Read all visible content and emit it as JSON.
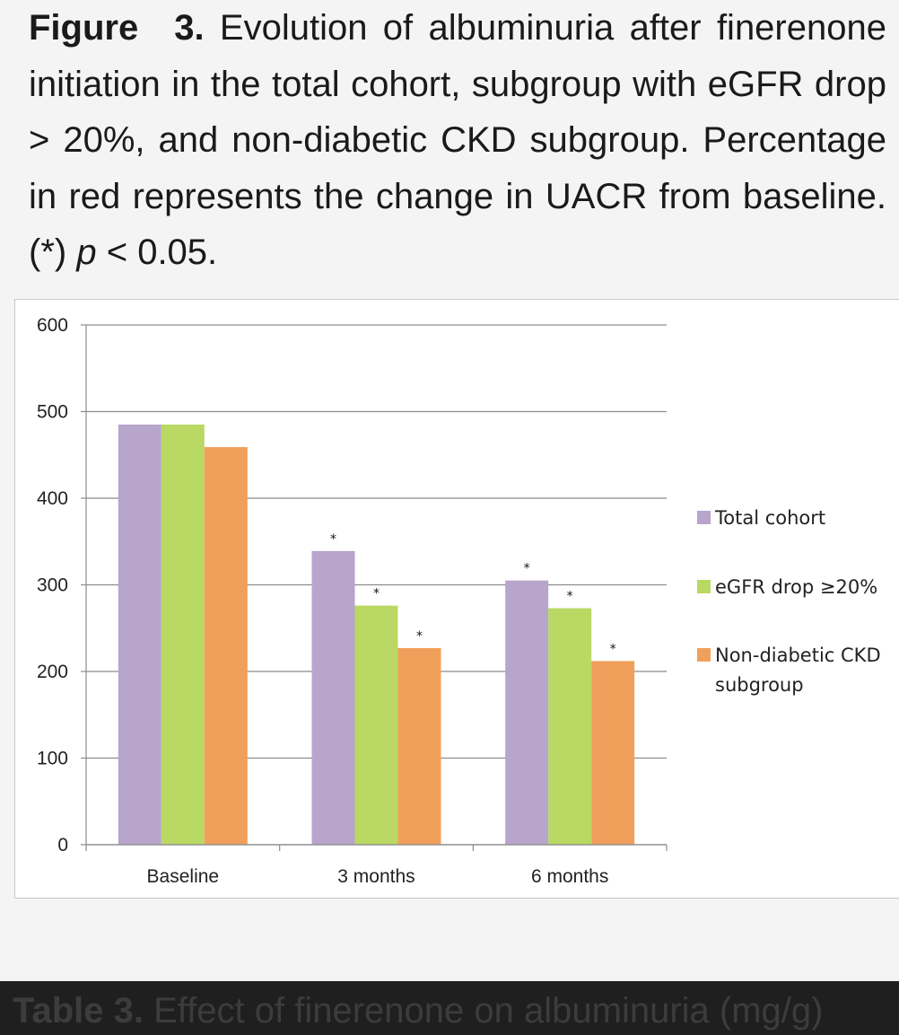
{
  "caption": {
    "label": "Figure",
    "number": "3.",
    "text_before_p": "Evolution of albuminuria after finerenone initiation in the total cohort, subgroup with eGFR drop > 20%, and non-diabetic CKD subgroup. Percentage in red represents the change in UACR from baseline. (*)",
    "p_italic": "p",
    "text_after_p": "< 0.05."
  },
  "table_caption": {
    "label": "Table 3.",
    "text": "Effect of finerenone on albuminuria (mg/g)"
  },
  "colors": {
    "total_cohort": "#b7a5cc",
    "egfr_drop": "#b9d864",
    "non_diabetic": "#f0a05a",
    "gridline": "#8c8c8c"
  },
  "chart_data": {
    "type": "bar",
    "title": "",
    "xlabel": "",
    "ylabel": "",
    "ylim": [
      0,
      600
    ],
    "yticks": [
      "0",
      "100",
      "200",
      "300",
      "400",
      "500",
      "600"
    ],
    "grid": true,
    "legend_position": "right",
    "categories": [
      "Baseline",
      "3 months",
      "6 months"
    ],
    "series": [
      {
        "name": "Total cohort",
        "color_key": "total_cohort",
        "values": [
          485,
          339,
          305
        ],
        "significant": [
          false,
          true,
          true
        ]
      },
      {
        "name": "eGFR drop ≥20%",
        "color_key": "egfr_drop",
        "values": [
          485,
          276,
          273
        ],
        "significant": [
          false,
          true,
          true
        ]
      },
      {
        "name": "Non-diabetic CKD subgroup",
        "legend_lines": [
          "Non-diabetic CKD",
          "subgroup"
        ],
        "color_key": "non_diabetic",
        "values": [
          459,
          227,
          212
        ],
        "significant": [
          false,
          true,
          true
        ]
      }
    ],
    "significance_marker": "*"
  }
}
